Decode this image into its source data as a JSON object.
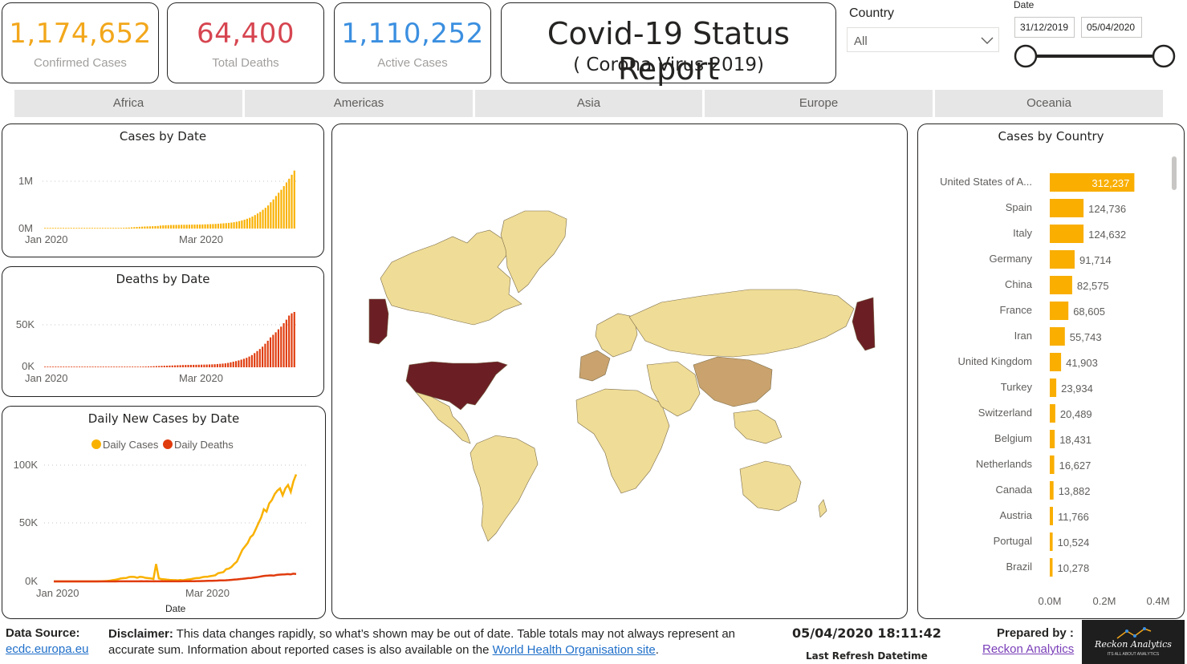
{
  "kpis": [
    {
      "value": "1,174,652",
      "label": "Confirmed Cases",
      "color": "#f2a71b"
    },
    {
      "value": "64,400",
      "label": "Total Deaths",
      "color": "#d64550"
    },
    {
      "value": "1,110,252",
      "label": "Active Cases",
      "color": "#3b8fe0"
    }
  ],
  "title": {
    "main": "Covid-19 Status Report",
    "sub": "( Corona Virus 2019)"
  },
  "country_slicer": {
    "label": "Country",
    "value": "All",
    "icon": "chevron-down-icon"
  },
  "date_slicer": {
    "label": "Date",
    "start": "31/12/2019",
    "end": "05/04/2020"
  },
  "regions": [
    "Africa",
    "Americas",
    "Asia",
    "Europe",
    "Oceania"
  ],
  "colors": {
    "cases": "#f9b100",
    "deaths": "#e03b0d",
    "bar": "#f9ae00",
    "map_high": "#6b1f24",
    "map_mid": "#c9a26d",
    "map_low": "#efdc96"
  },
  "cases_by_date": {
    "title": "Cases by Date",
    "ytick_top": "1M",
    "ytick_bottom": "0M",
    "xtick_1": "Jan 2020",
    "xtick_2": "Mar 2020"
  },
  "deaths_by_date": {
    "title": "Deaths by Date",
    "ytick_top": "50K",
    "ytick_bottom": "0K",
    "xtick_1": "Jan 2020",
    "xtick_2": "Mar 2020"
  },
  "daily_new": {
    "title": "Daily New Cases by Date",
    "legend_cases": "Daily Cases",
    "legend_deaths": "Daily Deaths",
    "ytick_1": "100K",
    "ytick_2": "50K",
    "ytick_3": "0K",
    "xtick_1": "Jan 2020",
    "xtick_2": "Mar 2020",
    "xlabel": "Date"
  },
  "cases_by_country": {
    "title": "Cases by Country",
    "xtick_1": "0.0M",
    "xtick_2": "0.2M",
    "xtick_3": "0.4M"
  },
  "chart_data": [
    {
      "type": "bar",
      "title": "Cases by Date",
      "xlabel": "",
      "ylabel": "",
      "x_range": [
        "31/12/2019",
        "05/04/2020"
      ],
      "ylim": [
        0,
        1300000
      ],
      "values": [
        0,
        0,
        0,
        0,
        0,
        0,
        0,
        0,
        0,
        0,
        0,
        0,
        0,
        0,
        0,
        0,
        0,
        0,
        0,
        0,
        0,
        0,
        1000,
        2000,
        3000,
        4000,
        6000,
        8000,
        10000,
        12000,
        15000,
        18000,
        20000,
        24000,
        28000,
        31000,
        35000,
        38000,
        41000,
        43000,
        45000,
        47000,
        50000,
        52000,
        60000,
        64000,
        67000,
        69000,
        71000,
        73000,
        74000,
        75000,
        75500,
        76000,
        77000,
        78000,
        79000,
        80000,
        81000,
        82000,
        83000,
        85000,
        87000,
        89000,
        91000,
        94000,
        98000,
        102000,
        106000,
        110000,
        115000,
        121000,
        128000,
        138000,
        150000,
        165000,
        180000,
        198000,
        218000,
        243000,
        273000,
        306000,
        338000,
        380000,
        420000,
        468000,
        533000,
        590000,
        660000,
        725000,
        786000,
        860000,
        935000,
        1010000,
        1090000,
        1174652
      ]
    },
    {
      "type": "bar",
      "title": "Deaths by Date",
      "xlabel": "",
      "ylabel": "",
      "x_range": [
        "31/12/2019",
        "05/04/2020"
      ],
      "ylim": [
        0,
        70000
      ],
      "values": [
        0,
        0,
        0,
        0,
        0,
        0,
        0,
        0,
        0,
        0,
        0,
        0,
        0,
        0,
        0,
        0,
        0,
        0,
        0,
        0,
        0,
        0,
        30,
        50,
        80,
        110,
        130,
        170,
        210,
        260,
        300,
        360,
        420,
        490,
        560,
        640,
        720,
        810,
        900,
        1010,
        1110,
        1260,
        1380,
        1520,
        1660,
        1770,
        1870,
        2010,
        2120,
        2240,
        2360,
        2460,
        2620,
        2700,
        2760,
        2800,
        2860,
        2920,
        2980,
        3050,
        3110,
        3200,
        3300,
        3400,
        3560,
        3800,
        4000,
        4300,
        4600,
        5100,
        5800,
        6500,
        7200,
        8000,
        8900,
        9900,
        11000,
        12500,
        14200,
        16500,
        18900,
        21300,
        24000,
        27400,
        30900,
        34800,
        37800,
        40700,
        44200,
        47300,
        51300,
        55400,
        60200,
        62800,
        64400
      ]
    },
    {
      "type": "line",
      "title": "Daily New Cases by Date",
      "xlabel": "Date",
      "ylabel": "",
      "x_range": [
        "31/12/2019",
        "05/04/2020"
      ],
      "ylim": [
        0,
        100000
      ],
      "series": [
        {
          "name": "Daily Cases",
          "values": [
            0,
            0,
            0,
            0,
            0,
            0,
            0,
            0,
            0,
            0,
            0,
            0,
            0,
            0,
            0,
            0,
            0,
            100,
            150,
            250,
            400,
            700,
            1200,
            1500,
            2000,
            2600,
            2800,
            3000,
            3800,
            4000,
            3800,
            3200,
            3900,
            3700,
            3100,
            2800,
            2600,
            2100,
            15000,
            2600,
            2000,
            1800,
            1500,
            1300,
            1200,
            1100,
            1000,
            1200,
            1000,
            1400,
            1700,
            2000,
            2500,
            2800,
            2900,
            3500,
            3900,
            4000,
            4500,
            4800,
            5300,
            7000,
            7500,
            8000,
            10500,
            11000,
            12500,
            15000,
            17000,
            22000,
            27000,
            30000,
            33000,
            38000,
            40000,
            45000,
            50000,
            55000,
            62000,
            60000,
            67000,
            70000,
            75000,
            78000,
            80000,
            74000,
            80000,
            83000,
            77000,
            86000,
            92000
          ]
        },
        {
          "name": "Daily Deaths",
          "values": [
            0,
            0,
            0,
            0,
            0,
            0,
            0,
            0,
            0,
            0,
            0,
            0,
            0,
            0,
            0,
            0,
            0,
            0,
            0,
            0,
            10,
            20,
            30,
            40,
            50,
            60,
            70,
            80,
            90,
            100,
            100,
            110,
            100,
            110,
            100,
            100,
            100,
            100,
            150,
            100,
            100,
            100,
            80,
            90,
            100,
            100,
            110,
            120,
            130,
            150,
            200,
            250,
            300,
            350,
            400,
            450,
            500,
            600,
            700,
            800,
            900,
            1000,
            1100,
            1300,
            1500,
            1700,
            2000,
            2200,
            2500,
            2800,
            3000,
            3300,
            3600,
            4000,
            4500,
            4800,
            5000,
            5200,
            5000,
            5500,
            5800,
            5900,
            6000,
            6300,
            6100,
            6600,
            6400
          ]
        }
      ]
    },
    {
      "type": "bar",
      "title": "Cases by Country",
      "xlabel": "",
      "ylabel": "",
      "xlim": [
        0,
        400000
      ],
      "categories": [
        "United States of A...",
        "Spain",
        "Italy",
        "Germany",
        "China",
        "France",
        "Iran",
        "United Kingdom",
        "Turkey",
        "Switzerland",
        "Belgium",
        "Netherlands",
        "Canada",
        "Austria",
        "Portugal",
        "Brazil"
      ],
      "values": [
        312237,
        124736,
        124632,
        91714,
        82575,
        68605,
        55743,
        41903,
        23934,
        20489,
        18431,
        16627,
        13882,
        11766,
        10524,
        10278
      ],
      "labels": [
        "312,237",
        "124,736",
        "124,632",
        "91,714",
        "82,575",
        "68,605",
        "55,743",
        "41,903",
        "23,934",
        "20,489",
        "18,431",
        "16,627",
        "13,882",
        "11,766",
        "10,524",
        "10,278"
      ]
    }
  ],
  "footer": {
    "source_label": "Data Source:",
    "source_link": "ecdc.europa.eu",
    "disclaimer_label": "Disclaimer:",
    "disclaimer_text": " This data changes rapidly, so what’s shown may be out of date. Table totals may not always represent an accurate sum. Information about reported cases is also available on the ",
    "disclaimer_link": "World Health Organisation site",
    "disclaimer_end": ".",
    "refresh_value": "05/04/2020 18:11:42",
    "refresh_label": "Last Refresh Datetime",
    "prepared_label": "Prepared by :",
    "prepared_link": "Reckon Analytics",
    "logo_text": "Reckon Analytics",
    "logo_tagline": "ITS ALL ABOUT ANALYTICS"
  }
}
